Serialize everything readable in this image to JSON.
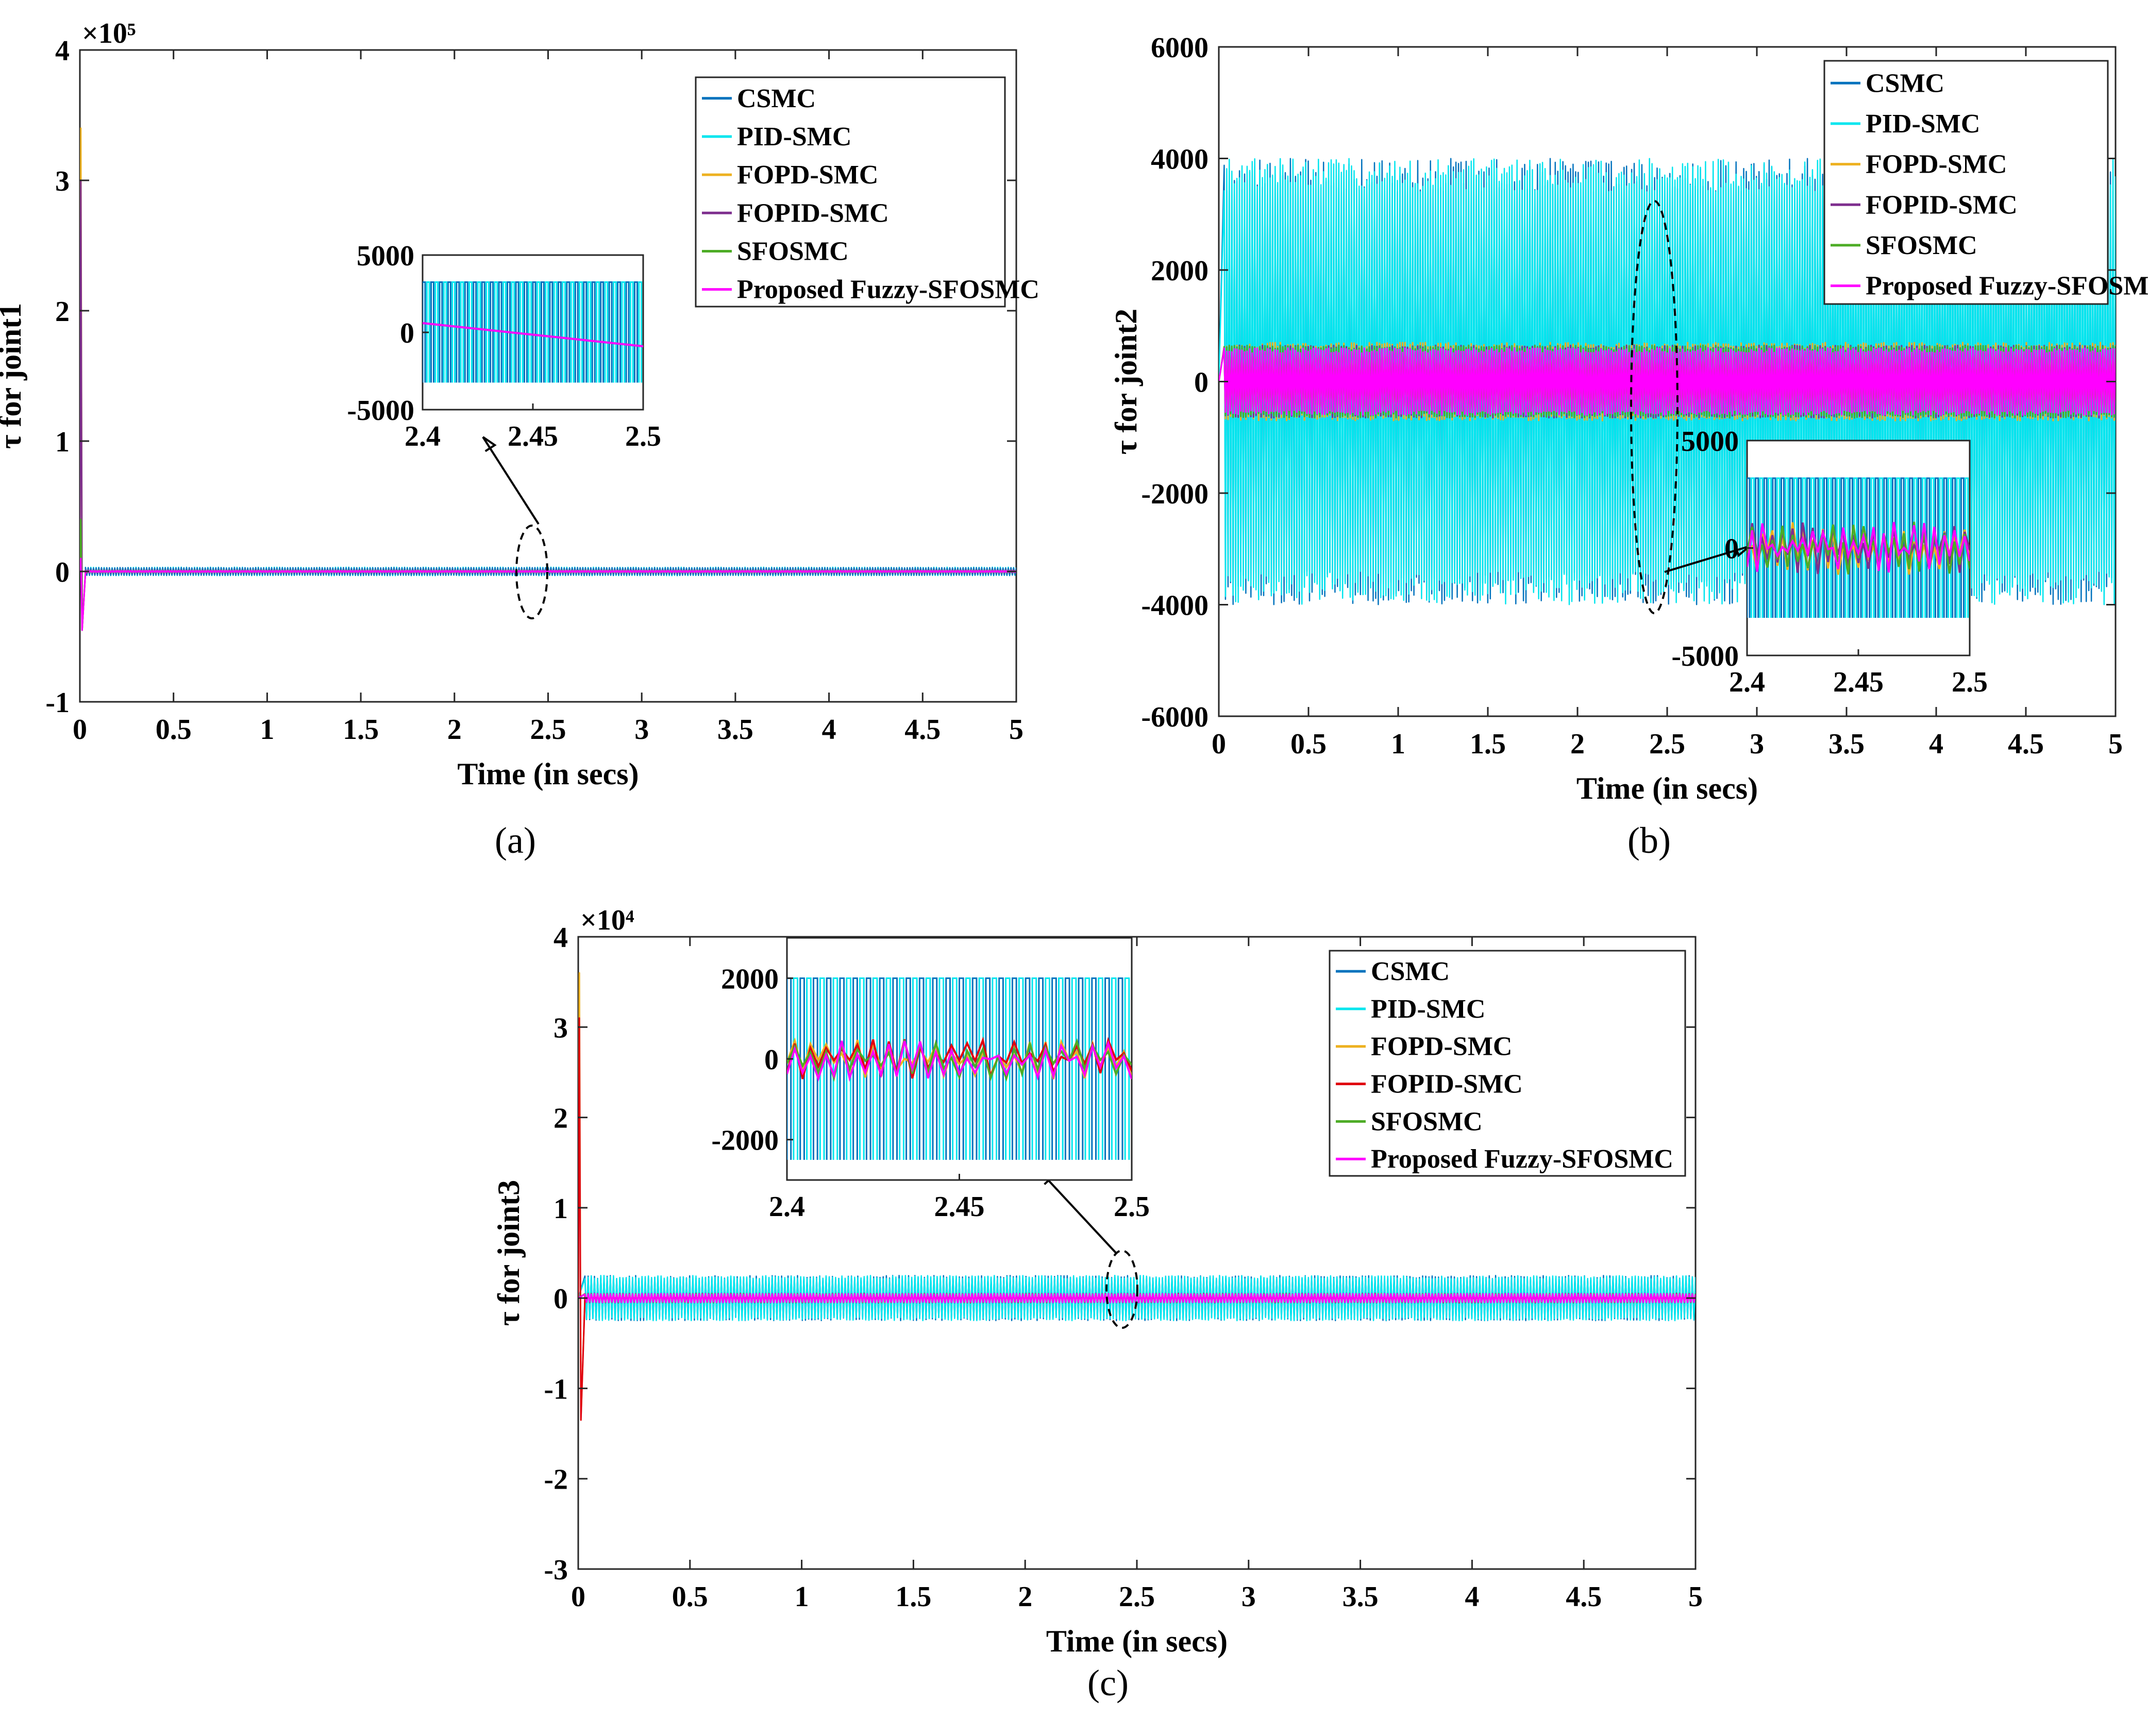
{
  "palette": {
    "CSMC": "#0072bd",
    "PID-SMC": "#00e5ee",
    "FOPD-SMC": "#edb120",
    "FOPID-SMC_a": "#7e2f8e",
    "FOPID-SMC_c": "#e0000f",
    "SFOSMC": "#4dac26",
    "Proposed Fuzzy-SFOSMC": "#ff00ff"
  },
  "chart_data": [
    {
      "type": "line",
      "panel_label": "a",
      "caption": "(a)",
      "ylabel": "τ for joint1",
      "xlabel": "Time (in secs)",
      "exponent": "×10⁵",
      "xlim": [
        0,
        5
      ],
      "ylim": [
        -1,
        4
      ],
      "xticks": [
        "0",
        "0.5",
        "1",
        "1.5",
        "2",
        "2.5",
        "3",
        "3.5",
        "4",
        "4.5",
        "5"
      ],
      "yticks": [
        "-1",
        "0",
        "1",
        "2",
        "3",
        "4"
      ],
      "legend": [
        "CSMC",
        "PID-SMC",
        "FOPD-SMC",
        "FOPID-SMC",
        "SFOSMC",
        "Proposed Fuzzy-SFOSMC"
      ],
      "legend_position": "top-right",
      "series": [
        {
          "name": "CSMC",
          "initial_peak": 0.3,
          "band_high": 0.03,
          "band_low": -0.03
        },
        {
          "name": "PID-SMC",
          "initial_peak": 3.3,
          "band_high": 0.033,
          "band_low": -0.033
        },
        {
          "name": "FOPD-SMC",
          "initial_peak": 3.4,
          "band_high": 0.01,
          "band_low": -0.01
        },
        {
          "name": "FOPID-SMC",
          "initial_peak": 3.0,
          "band_high": 0.01,
          "band_low": -0.01
        },
        {
          "name": "SFOSMC",
          "initial_peak": 0.4,
          "band_high": 0.005,
          "band_low": -0.005
        },
        {
          "name": "Proposed Fuzzy-SFOSMC",
          "initial_peak": 0.1,
          "band_high": 0.005,
          "band_low": -0.005
        }
      ],
      "inset": {
        "xlim": [
          2.4,
          2.5
        ],
        "ylim": [
          -5000,
          5000
        ],
        "xticks": [
          "2.4",
          "2.45",
          "2.5"
        ],
        "yticks": [
          "5000",
          "0",
          "-5000"
        ],
        "zoom_center_x": 2.45
      }
    },
    {
      "type": "line",
      "panel_label": "b",
      "caption": "(b)",
      "ylabel": "τ for joint2",
      "xlabel": "Time (in secs)",
      "exponent": "",
      "xlim": [
        0,
        5
      ],
      "ylim": [
        -6000,
        6000
      ],
      "xticks": [
        "0",
        "0.5",
        "1",
        "1.5",
        "2",
        "2.5",
        "3",
        "3.5",
        "4",
        "4.5",
        "5"
      ],
      "yticks": [
        "-6000",
        "-4000",
        "-2000",
        "0",
        "2000",
        "4000",
        "6000"
      ],
      "legend": [
        "CSMC",
        "PID-SMC",
        "FOPD-SMC",
        "FOPID-SMC",
        "SFOSMC",
        "Proposed Fuzzy-SFOSMC"
      ],
      "legend_position": "top-right",
      "series": [
        {
          "name": "CSMC",
          "band_high": 4000,
          "band_low": -4000
        },
        {
          "name": "PID-SMC",
          "band_high": 4000,
          "band_low": -4000
        },
        {
          "name": "FOPD-SMC",
          "band_high": 700,
          "band_low": -700
        },
        {
          "name": "FOPID-SMC",
          "band_high": 650,
          "band_low": -650
        },
        {
          "name": "SFOSMC",
          "band_high": 650,
          "band_low": -650
        },
        {
          "name": "Proposed Fuzzy-SFOSMC",
          "band_high": 600,
          "band_low": -600
        }
      ],
      "inset": {
        "xlim": [
          2.4,
          2.5
        ],
        "ylim": [
          -5000,
          5000
        ],
        "xticks": [
          "2.4",
          "2.45",
          "2.5"
        ],
        "yticks": [
          "5000",
          "0",
          "-5000"
        ],
        "zoom_center_x": 2.45
      }
    },
    {
      "type": "line",
      "panel_label": "c",
      "caption": "(c)",
      "ylabel": "τ for joint3",
      "xlabel": "Time (in secs)",
      "exponent": "×10⁴",
      "xlim": [
        0,
        5
      ],
      "ylim": [
        -3,
        4
      ],
      "xticks": [
        "0",
        "0.5",
        "1",
        "1.5",
        "2",
        "2.5",
        "3",
        "3.5",
        "4",
        "4.5",
        "5"
      ],
      "yticks": [
        "-3",
        "-2",
        "-1",
        "0",
        "1",
        "2",
        "3",
        "4"
      ],
      "legend": [
        "CSMC",
        "PID-SMC",
        "FOPD-SMC",
        "FOPID-SMC",
        "SFOSMC",
        "Proposed Fuzzy-SFOSMC"
      ],
      "legend_position": "top-right",
      "series": [
        {
          "name": "CSMC",
          "band_high": 0.25,
          "band_low": -0.25
        },
        {
          "name": "PID-SMC",
          "band_high": 0.25,
          "band_low": -0.25
        },
        {
          "name": "FOPD-SMC",
          "initial_peak": 3.6,
          "band_high": 0.05,
          "band_low": -0.05
        },
        {
          "name": "FOPID-SMC",
          "initial_peak": 3.1,
          "band_high": 0.05,
          "band_low": -0.05
        },
        {
          "name": "SFOSMC",
          "band_high": 0.05,
          "band_low": -0.05
        },
        {
          "name": "Proposed Fuzzy-SFOSMC",
          "band_high": 0.05,
          "band_low": -0.05
        }
      ],
      "inset": {
        "xlim": [
          2.4,
          2.5
        ],
        "ylim": [
          -3000,
          3000
        ],
        "xticks": [
          "2.4",
          "2.45",
          "2.5"
        ],
        "yticks": [
          "2000",
          "0",
          "-2000"
        ],
        "zoom_center_x": 2.45
      }
    }
  ]
}
